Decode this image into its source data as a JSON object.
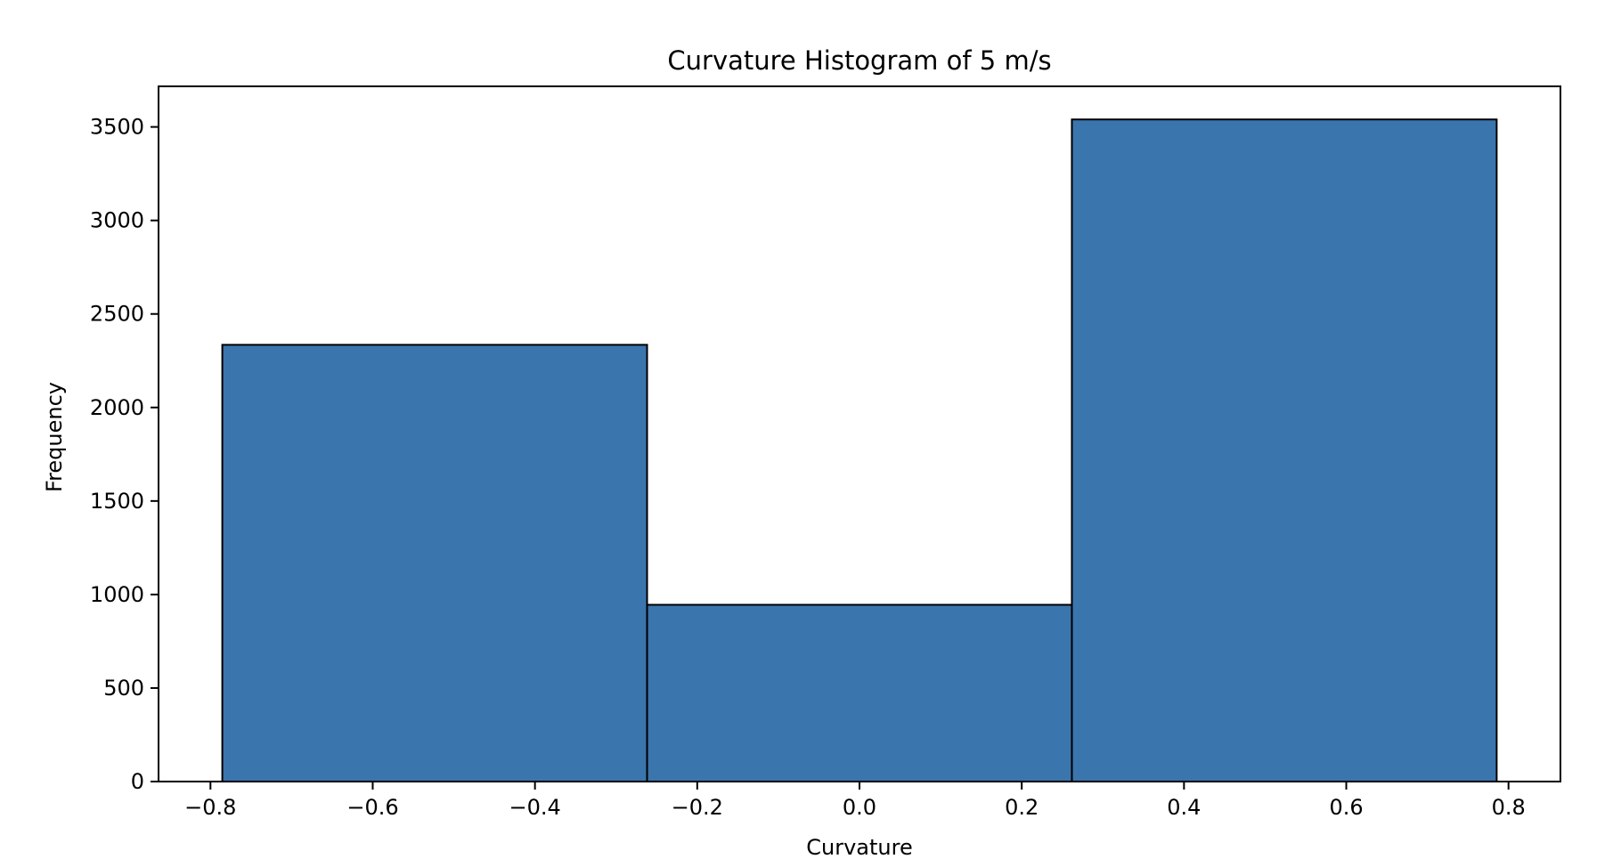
{
  "chart_data": {
    "type": "bar",
    "title": "Curvature Histogram of 5 m/s",
    "xlabel": "Curvature",
    "ylabel": "Frequency",
    "bins": [
      {
        "x0": -0.7854,
        "x1": -0.2618,
        "count": 2335
      },
      {
        "x0": -0.2618,
        "x1": 0.2618,
        "count": 945
      },
      {
        "x0": 0.2618,
        "x1": 0.7854,
        "count": 3540
      }
    ],
    "xlim": [
      -0.864,
      0.864
    ],
    "ylim": [
      0,
      3717
    ],
    "xticks": [
      -0.8,
      -0.6,
      -0.4,
      -0.2,
      0.0,
      0.2,
      0.4,
      0.6,
      0.8
    ],
    "xtick_labels": [
      "−0.8",
      "−0.6",
      "−0.4",
      "−0.2",
      "0.0",
      "0.2",
      "0.4",
      "0.6",
      "0.8"
    ],
    "yticks": [
      0,
      500,
      1000,
      1500,
      2000,
      2500,
      3000,
      3500
    ],
    "ytick_labels": [
      "0",
      "500",
      "1000",
      "1500",
      "2000",
      "2500",
      "3000",
      "3500"
    ],
    "grid": false,
    "colors": {
      "bar_fill": "#3b75ad",
      "bar_edge": "#000000"
    }
  }
}
